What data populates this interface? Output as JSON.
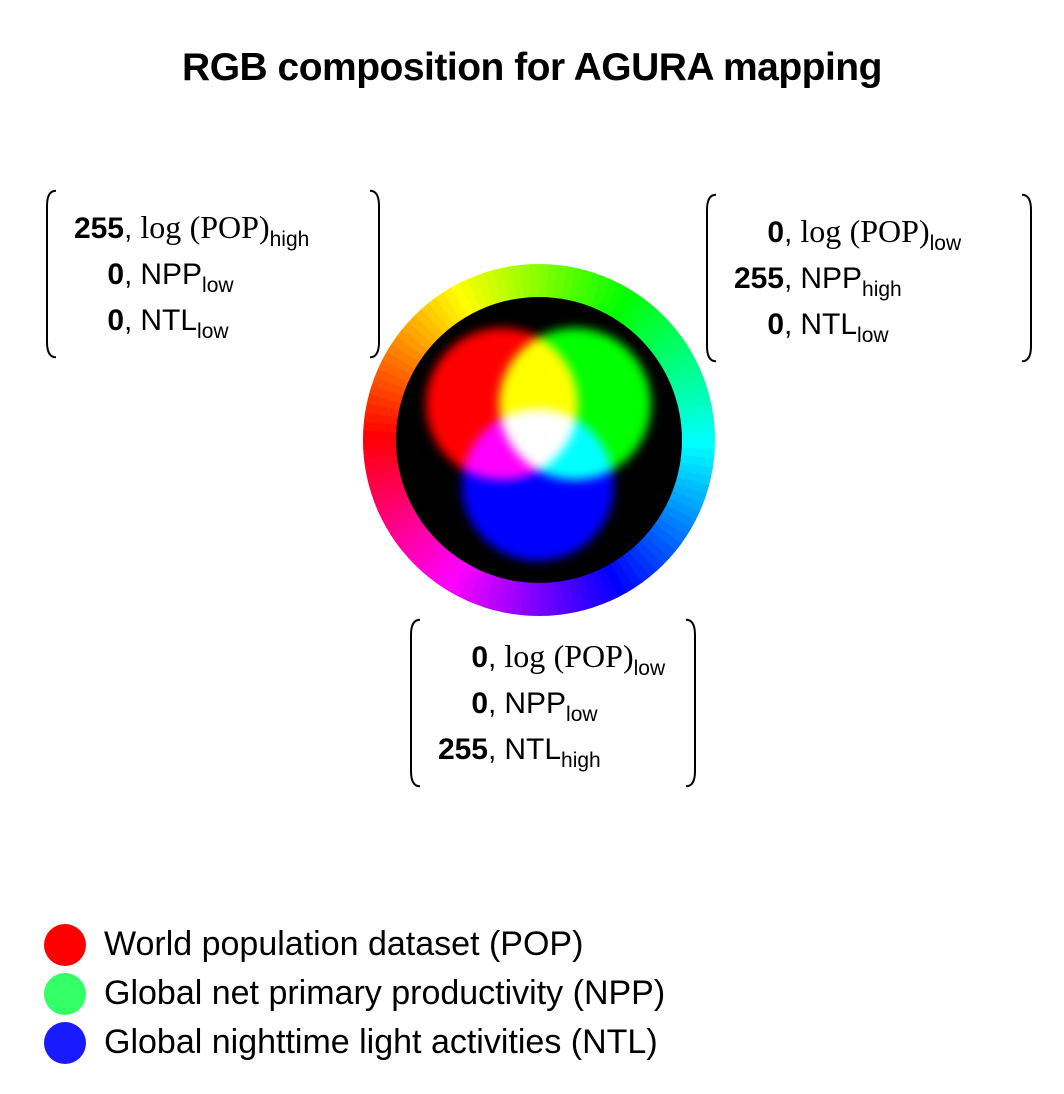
{
  "title": "RGB composition for AGURA mapping",
  "colors": {
    "red": "#ff0000",
    "green": "#00ff00",
    "blue": "#0000ff",
    "legend_red": "#ff0000",
    "legend_green": "#33ff66",
    "legend_blue": "#1a1aff"
  },
  "matrices": {
    "red": {
      "rows": [
        {
          "value": "255",
          "func": "log",
          "name": "(POP)",
          "sub": "high"
        },
        {
          "value": "0",
          "name": "NPP",
          "sub": "low"
        },
        {
          "value": "0",
          "name": "NTL",
          "sub": "low"
        }
      ]
    },
    "green": {
      "rows": [
        {
          "value": "0",
          "func": "log",
          "name": "(POP)",
          "sub": "low"
        },
        {
          "value": "255",
          "name": "NPP",
          "sub": "high"
        },
        {
          "value": "0",
          "name": "NTL",
          "sub": "low"
        }
      ]
    },
    "blue": {
      "rows": [
        {
          "value": "0",
          "func": "log",
          "name": "(POP)",
          "sub": "low"
        },
        {
          "value": "0",
          "name": "NPP",
          "sub": "low"
        },
        {
          "value": "255",
          "name": "NTL",
          "sub": "high"
        }
      ]
    }
  },
  "legend": [
    {
      "label": "World population dataset (POP)",
      "color": "#ff0000"
    },
    {
      "label": "Global net primary productivity (NPP)",
      "color": "#33ff66"
    },
    {
      "label": "Global nighttime light activities (NTL)",
      "color": "#1a1aff"
    }
  ]
}
